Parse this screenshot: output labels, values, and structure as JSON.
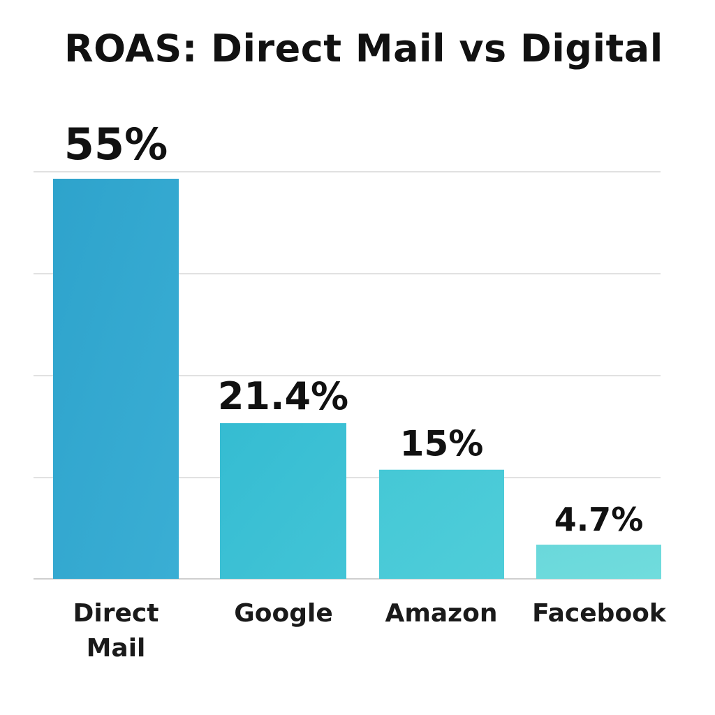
{
  "chart_data": {
    "type": "bar",
    "title": "ROAS: Direct Mail vs Digital",
    "categories": [
      "Direct Mail",
      "Google",
      "Amazon",
      "Facebook"
    ],
    "values": [
      55,
      21.4,
      15,
      4.7
    ],
    "data_labels": [
      "55%",
      "21.4%",
      "15%",
      "4.7%"
    ],
    "xlabel": "",
    "ylabel": "",
    "ylim": [
      0,
      55
    ],
    "grid": true,
    "legend": "none",
    "colors": {
      "bar_top": [
        "#2ea3cc",
        "#35bcd2",
        "#45c8d6",
        "#6ad8db"
      ],
      "bar_bottom": [
        "#3aaed4",
        "#42c4d6",
        "#4fcdd9",
        "#70dcdd"
      ],
      "grid": "#cfcfcf",
      "text": "#111111"
    }
  }
}
